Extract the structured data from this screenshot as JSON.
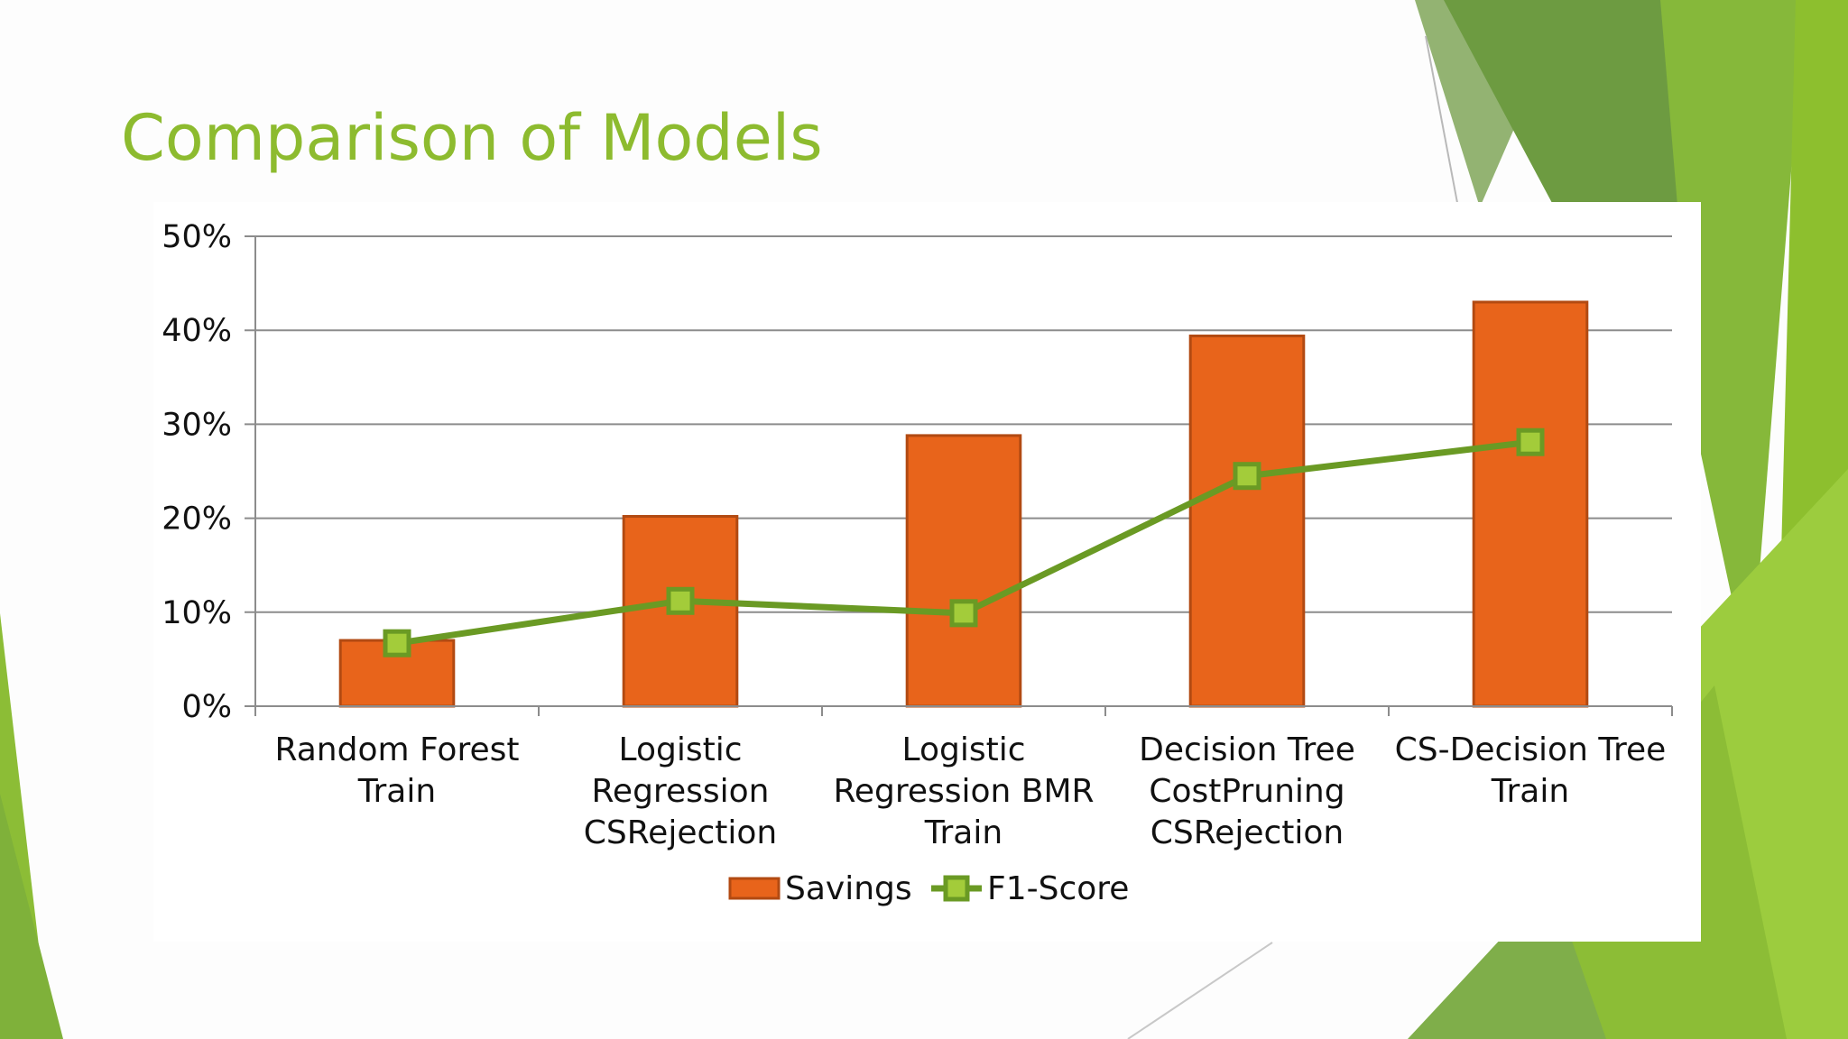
{
  "slide": {
    "title": "Comparison of Models"
  },
  "colors": {
    "accent": "#8dbb2f",
    "savings": "#e8641b",
    "savings_border": "#b24a12",
    "f1_line": "#6a9a24",
    "f1_marker_fill": "#a3cc3a",
    "grid": "#8c8c8c"
  },
  "chart_data": {
    "type": "bar",
    "categories": [
      [
        "Random Forest",
        "Train"
      ],
      [
        "Logistic",
        "Regression",
        "CSRejection"
      ],
      [
        "Logistic",
        "Regression BMR",
        "Train"
      ],
      [
        "Decision Tree",
        "CostPruning",
        "CSRejection"
      ],
      [
        "CS-Decision Tree",
        "Train"
      ]
    ],
    "series": [
      {
        "name": "Savings",
        "kind": "bar",
        "values": [
          7,
          20.2,
          28.8,
          39.4,
          43
        ]
      },
      {
        "name": "F1-Score",
        "kind": "line",
        "marker": "square",
        "values": [
          6.7,
          11.2,
          9.9,
          24.5,
          28.1
        ]
      }
    ],
    "ylim": [
      0,
      50
    ],
    "yticks": [
      0,
      10,
      20,
      30,
      40,
      50
    ],
    "ytick_labels": [
      "0%",
      "10%",
      "20%",
      "30%",
      "40%",
      "50%"
    ],
    "grid": true,
    "legend_position": "bottom"
  }
}
